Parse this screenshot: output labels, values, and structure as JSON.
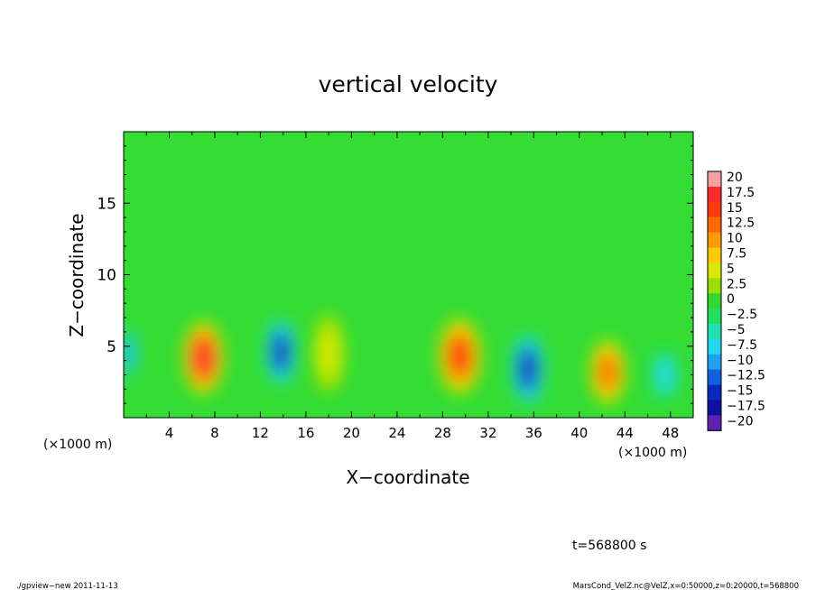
{
  "chart_data": {
    "type": "heatmap",
    "title": "vertical velocity",
    "xlabel": "X−coordinate",
    "ylabel": "Z−coordinate",
    "x_unit_left": "(×1000 m)",
    "x_unit_right": "(×1000 m)",
    "xlim": [
      0,
      50
    ],
    "ylim": [
      0,
      20
    ],
    "x_ticks": [
      4,
      8,
      12,
      16,
      20,
      24,
      28,
      32,
      36,
      40,
      44,
      48
    ],
    "y_ticks": [
      5,
      10,
      15
    ],
    "colorbar_labels": [
      "20",
      "17.5",
      "15",
      "12.5",
      "10",
      "7.5",
      "5",
      "2.5",
      "0",
      "−2.5",
      "−5",
      "−7.5",
      "−10",
      "−12.5",
      "−15",
      "−17.5",
      "−20"
    ],
    "colorbar_colors": [
      "#f7a0a0",
      "#ff2a2a",
      "#ff3a10",
      "#ff6a00",
      "#ff9a00",
      "#ffcc00",
      "#d8e800",
      "#96e000",
      "#30d830",
      "#20e060",
      "#20e0b0",
      "#20d8f0",
      "#20a0f0",
      "#1060e0",
      "#0828c0",
      "#1010a0",
      "#6020b0"
    ],
    "cells": [
      {
        "x": 7.0,
        "z": 4.2,
        "value": 17.0,
        "rx": 1.8,
        "rz": 2.6
      },
      {
        "x": 13.8,
        "z": 4.6,
        "value": -14.0,
        "rx": 1.4,
        "rz": 2.4
      },
      {
        "x": 18.0,
        "z": 4.5,
        "value": 5.0,
        "rx": 1.4,
        "rz": 2.8
      },
      {
        "x": 29.5,
        "z": 4.3,
        "value": 14.0,
        "rx": 1.9,
        "rz": 2.7
      },
      {
        "x": 35.5,
        "z": 3.4,
        "value": -15.0,
        "rx": 1.5,
        "rz": 2.6
      },
      {
        "x": 42.5,
        "z": 3.2,
        "value": 11.5,
        "rx": 1.6,
        "rz": 2.3
      },
      {
        "x": 47.5,
        "z": 3.0,
        "value": -8.0,
        "rx": 1.2,
        "rz": 1.8
      },
      {
        "x": 0.4,
        "z": 4.5,
        "value": -9.0,
        "rx": 0.8,
        "rz": 1.8
      }
    ],
    "annotations": {
      "time": "t=568800 s",
      "footer_left": "./gpview−new  2011-11-13",
      "footer_right": "MarsCond_VelZ.nc@VelZ,x=0:50000,z=0:20000,t=568800"
    }
  }
}
